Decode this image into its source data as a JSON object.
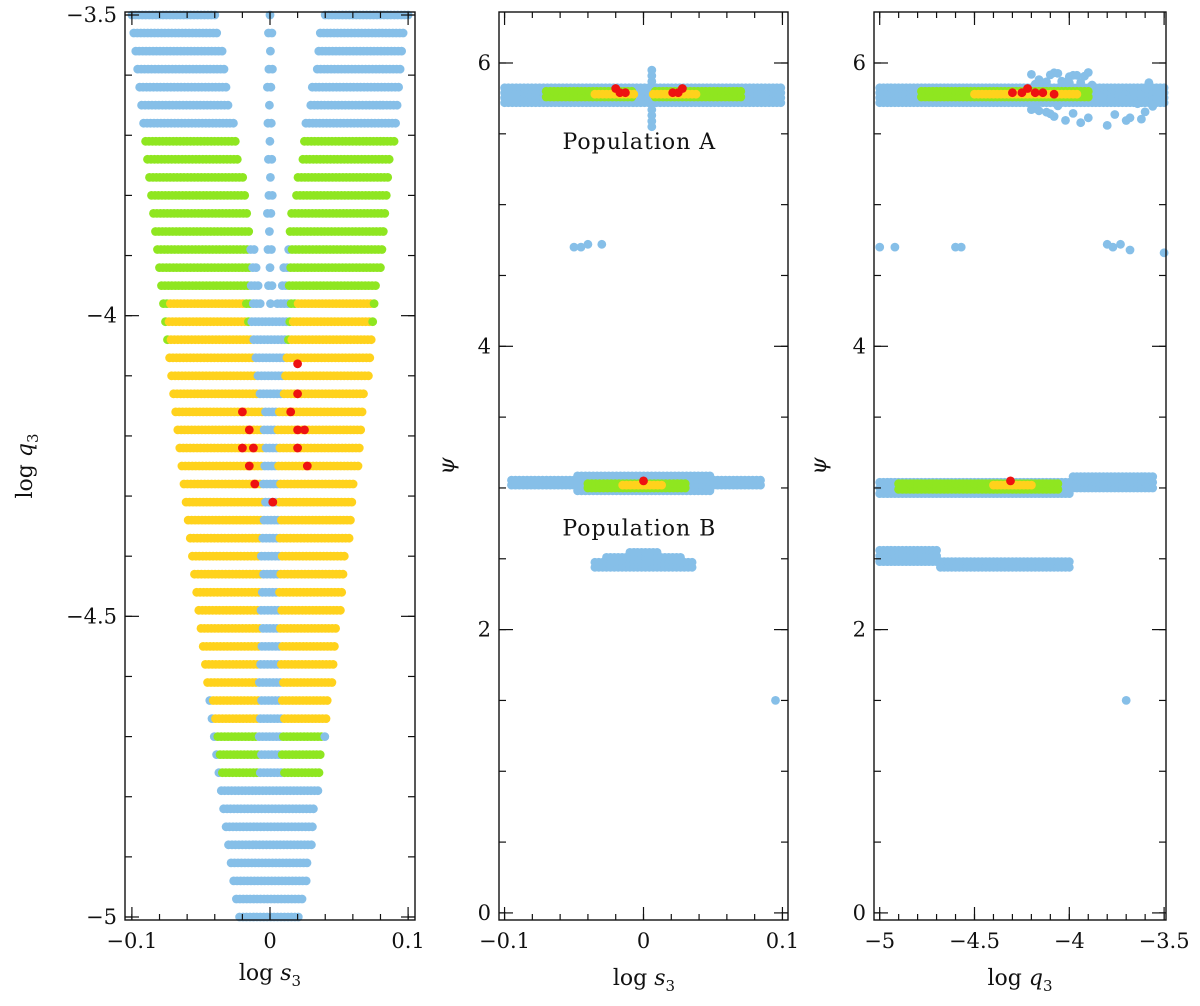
{
  "chart_data": [
    {
      "type": "scatter",
      "xlabel_parts": [
        "log ",
        "s",
        "3"
      ],
      "ylabel_parts": [
        "log ",
        "q",
        "3"
      ],
      "xlim": [
        -0.105,
        0.105
      ],
      "ylim": [
        -5.005,
        -3.495
      ],
      "x_ticks": [
        {
          "v": -0.1,
          "label": "−0.1"
        },
        {
          "v": 0,
          "label": "0"
        },
        {
          "v": 0.1,
          "label": "0.1"
        }
      ],
      "y_ticks": [
        {
          "v": -5,
          "label": "−5"
        },
        {
          "v": -4.5,
          "label": "−4.5"
        },
        {
          "v": -4,
          "label": "−4"
        },
        {
          "v": -3.5,
          "label": "−3.5"
        }
      ],
      "x_minor_step": 0.02,
      "y_minor_step": 0.1,
      "color_levels": {
        "blue": "#86bfe8",
        "green": "#8fe620",
        "yellow": "#ffd21c",
        "red": "#ee1111"
      },
      "grid": false
    },
    {
      "type": "scatter",
      "xlabel_parts": [
        "log ",
        "s",
        "3"
      ],
      "ylabel_parts": [
        "ψ",
        "",
        ""
      ],
      "xlim": [
        -0.104,
        0.104
      ],
      "ylim": [
        -0.05,
        6.36
      ],
      "x_ticks": [
        {
          "v": -0.1,
          "label": "−0.1"
        },
        {
          "v": 0,
          "label": "0"
        },
        {
          "v": 0.1,
          "label": "0.1"
        }
      ],
      "y_ticks": [
        {
          "v": 0,
          "label": "0"
        },
        {
          "v": 2,
          "label": "2"
        },
        {
          "v": 4,
          "label": "4"
        },
        {
          "v": 6,
          "label": "6"
        }
      ],
      "x_minor_step": 0.02,
      "y_minor_step": 0.5,
      "annotations": [
        {
          "text": "Population A",
          "x": -0.003,
          "y": 5.45
        },
        {
          "text": "Population B",
          "x": -0.003,
          "y": 2.72
        }
      ],
      "populations": [
        {
          "name": "Population A",
          "psi": 5.78
        },
        {
          "name": "Population B",
          "psi": 3.03
        },
        {
          "name": "",
          "psi": 2.5
        }
      ],
      "grid": false
    },
    {
      "type": "scatter",
      "xlabel_parts": [
        "log ",
        "q",
        "3"
      ],
      "ylabel_parts": [
        "ψ",
        "",
        ""
      ],
      "xlim": [
        -5.03,
        -3.49
      ],
      "ylim": [
        -0.05,
        6.36
      ],
      "x_ticks": [
        {
          "v": -5,
          "label": "−5"
        },
        {
          "v": -4.5,
          "label": "−4.5"
        },
        {
          "v": -4,
          "label": "−4"
        },
        {
          "v": -3.5,
          "label": "−3.5"
        }
      ],
      "y_ticks": [
        {
          "v": 0,
          "label": "0"
        },
        {
          "v": 2,
          "label": "2"
        },
        {
          "v": 4,
          "label": "4"
        },
        {
          "v": 6,
          "label": "6"
        }
      ],
      "x_minor_step": 0.1,
      "y_minor_step": 0.5,
      "grid": false
    }
  ]
}
